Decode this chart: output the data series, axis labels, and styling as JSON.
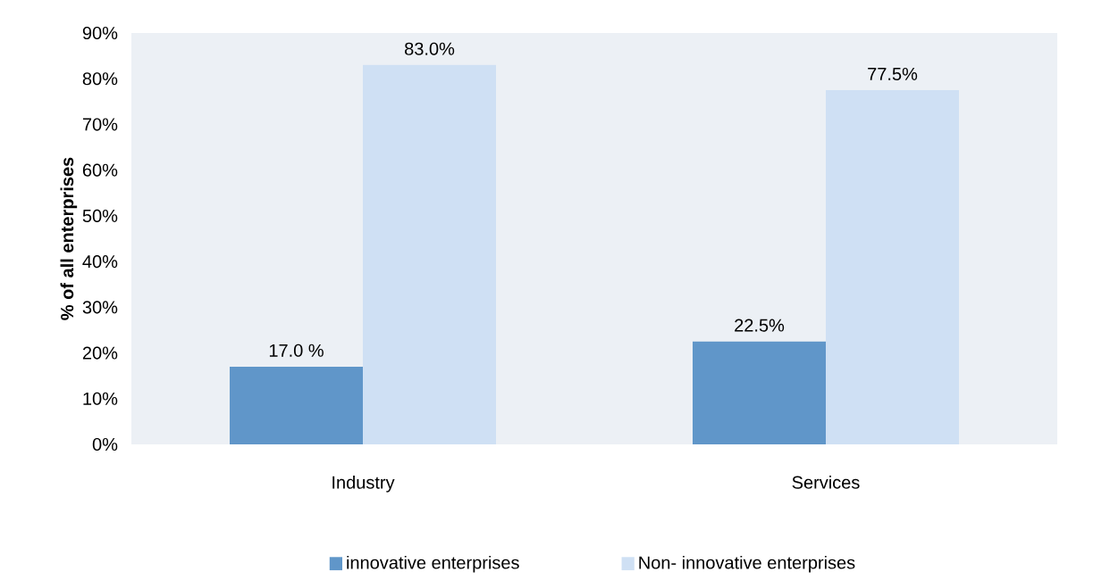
{
  "chart_data": {
    "type": "bar",
    "categories": [
      "Industry",
      "Services"
    ],
    "ylabel": "% of all enterprises",
    "ylim": [
      0,
      90
    ],
    "yticks": [
      {
        "value": 0,
        "label": "0%"
      },
      {
        "value": 10,
        "label": "10%"
      },
      {
        "value": 20,
        "label": "20%"
      },
      {
        "value": 30,
        "label": "30%"
      },
      {
        "value": 40,
        "label": "40%"
      },
      {
        "value": 50,
        "label": "50%"
      },
      {
        "value": 60,
        "label": "60%"
      },
      {
        "value": 70,
        "label": "70%"
      },
      {
        "value": 80,
        "label": "80%"
      },
      {
        "value": 90,
        "label": "90%"
      }
    ],
    "series": [
      {
        "name": "innovative enterprises",
        "color": "#6096c9",
        "values": [
          17.0,
          22.5
        ],
        "value_labels": [
          "17.0 %",
          "22.5%"
        ]
      },
      {
        "name": "Non- innovative enterprises",
        "color": "#cfe0f4",
        "values": [
          83.0,
          77.5
        ],
        "value_labels": [
          "83.0%",
          "77.5%"
        ]
      }
    ],
    "legend": "bottom"
  }
}
